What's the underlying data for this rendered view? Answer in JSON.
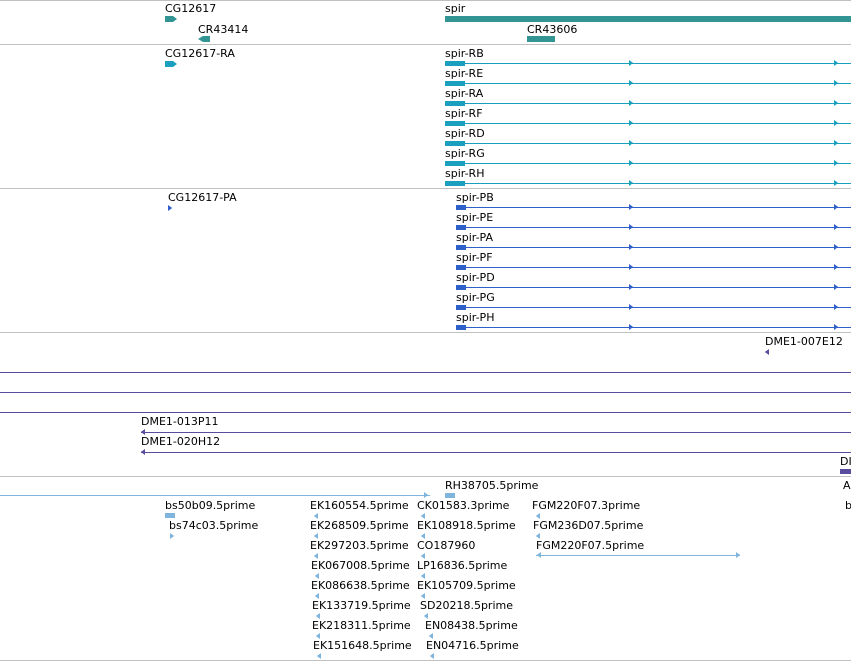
{
  "colors": {
    "gene": "#339494",
    "transcript": "#1a9fbf",
    "protein": "#2f5fc9",
    "clone": "#5a4c9c",
    "est": "#7fb5dd",
    "divider": "#c0c0c0"
  },
  "tracks": {
    "genes": [
      {
        "label": "CG12617"
      },
      {
        "label": "CR43414"
      },
      {
        "label": "spir"
      },
      {
        "label": "CR43606"
      }
    ],
    "transcripts": [
      {
        "label": "CG12617-RA"
      },
      {
        "label": "spir-RB"
      },
      {
        "label": "spir-RE"
      },
      {
        "label": "spir-RA"
      },
      {
        "label": "spir-RF"
      },
      {
        "label": "spir-RD"
      },
      {
        "label": "spir-RG"
      },
      {
        "label": "spir-RH"
      }
    ],
    "proteins": [
      {
        "label": "CG12617-PA"
      },
      {
        "label": "spir-PB"
      },
      {
        "label": "spir-PE"
      },
      {
        "label": "spir-PA"
      },
      {
        "label": "spir-PF"
      },
      {
        "label": "spir-PD"
      },
      {
        "label": "spir-PG"
      },
      {
        "label": "spir-PH"
      }
    ],
    "clones": [
      {
        "label": "DME1-007E12"
      },
      {
        "label": "DME1-013P11"
      },
      {
        "label": "DME1-020H12"
      },
      {
        "label": "DI"
      }
    ],
    "ests": [
      {
        "label": "RH38705.5prime"
      },
      {
        "label": "A"
      },
      {
        "label": "bs50b09.5prime"
      },
      {
        "label": "b"
      },
      {
        "label": "bs74c03.5prime"
      },
      {
        "label": "EK160554.5prime"
      },
      {
        "label": "CK01583.3prime"
      },
      {
        "label": "FGM220F07.3prime"
      },
      {
        "label": "EK268509.5prime"
      },
      {
        "label": "EK108918.5prime"
      },
      {
        "label": "FGM236D07.5prime"
      },
      {
        "label": "EK297203.5prime"
      },
      {
        "label": "CO187960"
      },
      {
        "label": "FGM220F07.5prime"
      },
      {
        "label": "EK067008.5prime"
      },
      {
        "label": "LP16836.5prime"
      },
      {
        "label": "EK086638.5prime"
      },
      {
        "label": "EK105709.5prime"
      },
      {
        "label": "EK133719.5prime"
      },
      {
        "label": "SD20218.5prime"
      },
      {
        "label": "EK218311.5prime"
      },
      {
        "label": "EN08438.5prime"
      },
      {
        "label": "EK151648.5prime"
      },
      {
        "label": "EN04716.5prime"
      }
    ]
  }
}
